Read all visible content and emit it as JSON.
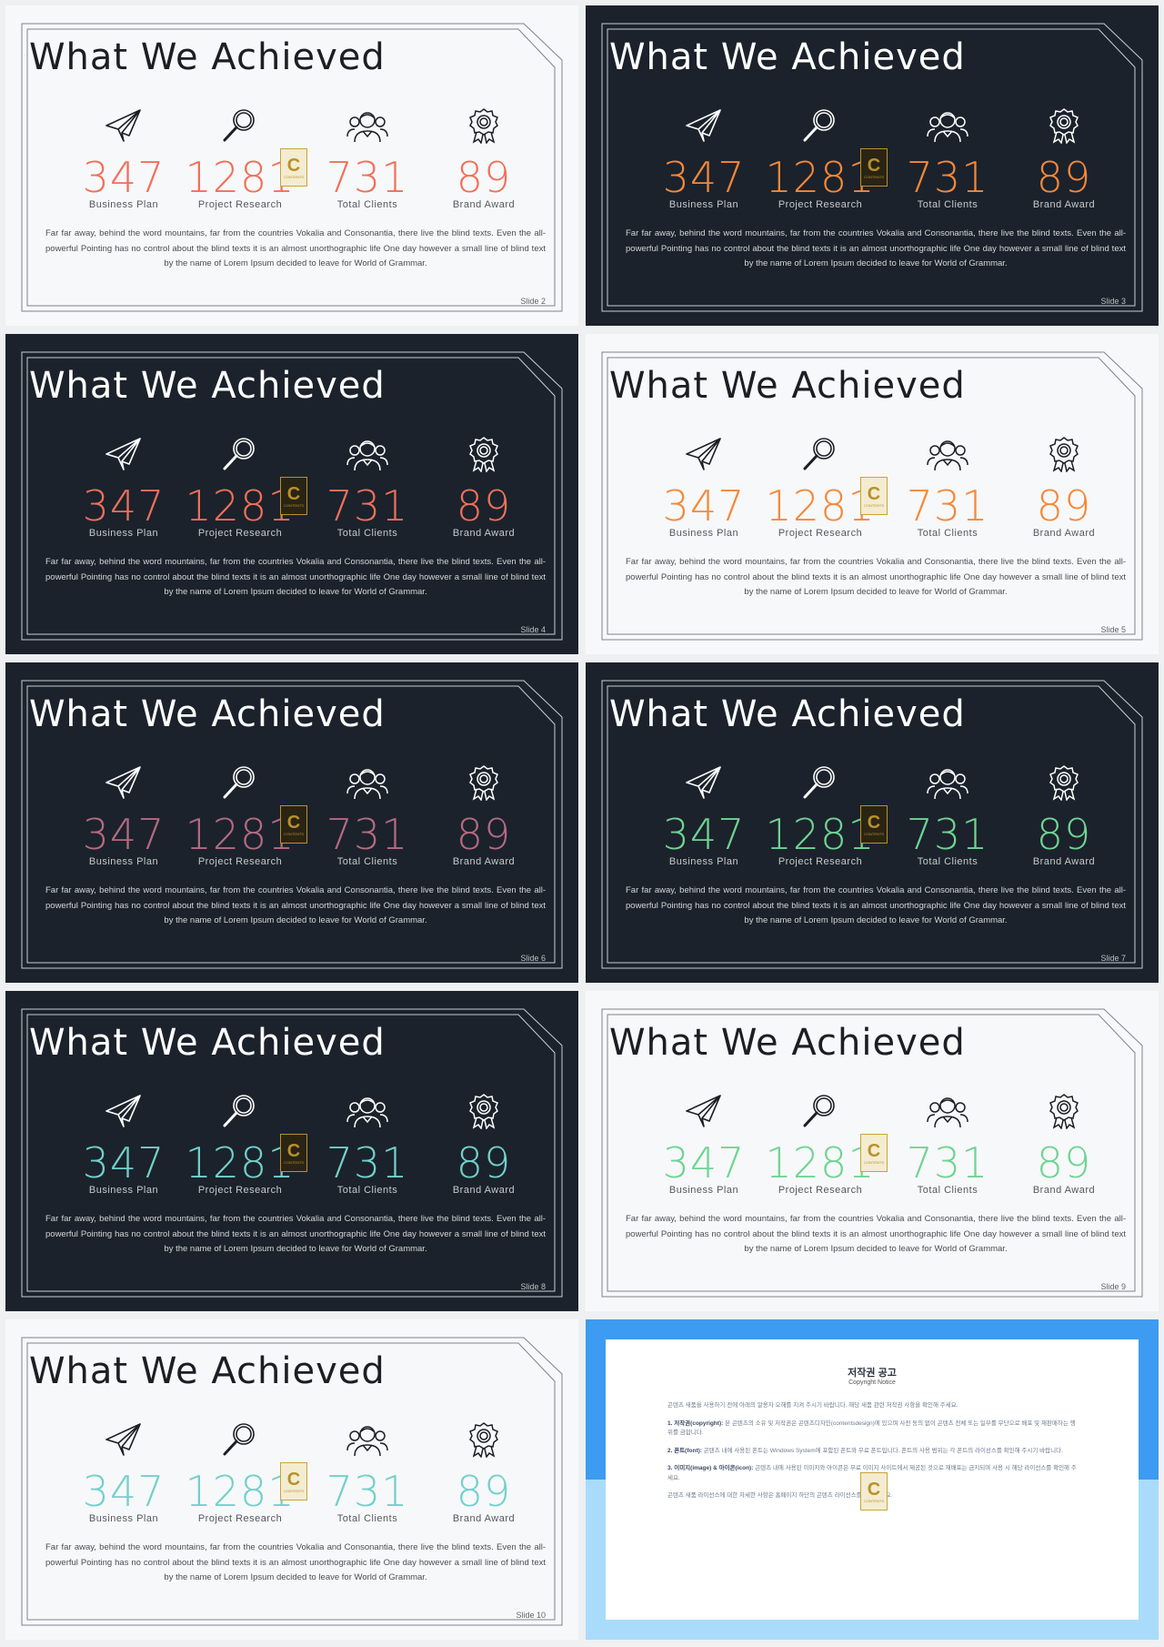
{
  "title": "What We Achieved",
  "stats": [
    {
      "icon": "paper-plane-icon",
      "value": "347",
      "label": "Business Plan"
    },
    {
      "icon": "magnifier-icon",
      "value": "1281",
      "label": "Project Research"
    },
    {
      "icon": "team-icon",
      "value": "731",
      "label": "Total Clients"
    },
    {
      "icon": "award-ribbon-icon",
      "value": "89",
      "label": "Brand Award"
    }
  ],
  "body_text": "Far far away, behind the word mountains, far from the countries Vokalia and Consonantia, there live the blind texts. Even the all-powerful Pointing has no control about the blind texts it is an almost unorthographic life One day however a small line of blind text by the name of Lorem Ipsum decided to leave for World of Grammar.",
  "badge": {
    "letter": "C",
    "text": "CONTENTS"
  },
  "slides": [
    {
      "num": "Slide 2",
      "theme": "light",
      "accent": "#f0705a"
    },
    {
      "num": "Slide 3",
      "theme": "dark",
      "accent": "#f5883a"
    },
    {
      "num": "Slide 4",
      "theme": "dark",
      "accent": "#f0705a"
    },
    {
      "num": "Slide 5",
      "theme": "light",
      "accent": "#f5883a"
    },
    {
      "num": "Slide 6",
      "theme": "dark",
      "accent": "#b56a82"
    },
    {
      "num": "Slide 7",
      "theme": "dark",
      "accent": "#6fd493"
    },
    {
      "num": "Slide 8",
      "theme": "dark",
      "accent": "#72d0cc"
    },
    {
      "num": "Slide 9",
      "theme": "light",
      "accent": "#6fd493"
    },
    {
      "num": "Slide 10",
      "theme": "light",
      "accent": "#72d0cc"
    }
  ],
  "notice": {
    "title": "저작권 공고",
    "subtitle": "Copyright Notice",
    "intro": "곤텐츠 새품을 사용하기 전에 아래의 알용자 오해를 지켜 주시기 바랍니다. 해당 새품 관련 저작권 사항을 확인해 주세요.",
    "items": [
      {
        "head": "1. 저작권(copyright):",
        "text": "본 곤텐츠의 소유 및 저작권은 곤텐츠디자인(contentsdesign)에 있으며 사전 동의 없이 곤텐츠 전체 또는 일부를 무단으로 배포 및 재판매하는 행위를 금합니다."
      },
      {
        "head": "2. 폰트(font):",
        "text": "곤텐츠 내에 사용된 폰트는 Windows System에 포함된 폰트와 무료 폰트입니다. 폰트의 사용 범위는 각 폰트의 라이선스를 확인해 주시기 바랍니다."
      },
      {
        "head": "3. 이미지(image) & 아이콘(icon):",
        "text": "곤텐츠 내에 사용된 이미지와 아이콘은 무료 이미지 사이트에서 제공된 것으로 재배포는 금지되며 사용 시 해당 라이선스를 확인해 주세요."
      }
    ],
    "footer": "곤텐츠 새품 라이선스에 대한 자세한 사항은 홈페이지 하단의 곤텐츠 라이선스를 참고하세요."
  }
}
